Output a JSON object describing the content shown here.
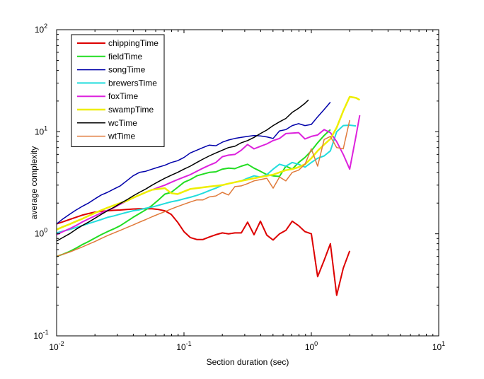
{
  "chart_data": {
    "type": "line",
    "xscale": "log",
    "yscale": "log",
    "xlim": [
      0.01,
      10
    ],
    "ylim": [
      0.1,
      100
    ],
    "xlabel": "Section duration (sec)",
    "ylabel": "average complexity",
    "grid": false,
    "legend_position": "top-left",
    "xticks": [
      {
        "value": 0.01,
        "base": "10",
        "exp": "-2"
      },
      {
        "value": 0.1,
        "base": "10",
        "exp": "-1"
      },
      {
        "value": 1,
        "base": "10",
        "exp": "0"
      },
      {
        "value": 10,
        "base": "10",
        "exp": "1"
      }
    ],
    "yticks": [
      {
        "value": 0.1,
        "base": "10",
        "exp": "-1"
      },
      {
        "value": 1,
        "base": "10",
        "exp": "0"
      },
      {
        "value": 10,
        "base": "10",
        "exp": "1"
      },
      {
        "value": 100,
        "base": "10",
        "exp": "2"
      }
    ],
    "series": [
      {
        "name": "chippingTime",
        "color": "#dd0000",
        "width": 2,
        "x": [
          0.01,
          0.0112,
          0.0126,
          0.0141,
          0.0158,
          0.0178,
          0.02,
          0.0224,
          0.0251,
          0.0282,
          0.0316,
          0.0355,
          0.0398,
          0.0447,
          0.0501,
          0.0562,
          0.0631,
          0.0708,
          0.0794,
          0.0891,
          0.1,
          0.112,
          0.126,
          0.141,
          0.158,
          0.178,
          0.2,
          0.224,
          0.251,
          0.282,
          0.316,
          0.355,
          0.398,
          0.447,
          0.501,
          0.562,
          0.631,
          0.708,
          0.794,
          0.891,
          1.0,
          1.12,
          1.26,
          1.41,
          1.58,
          1.78,
          2.0
        ],
        "y": [
          1.25,
          1.31,
          1.38,
          1.45,
          1.52,
          1.58,
          1.63,
          1.66,
          1.68,
          1.7,
          1.71,
          1.73,
          1.75,
          1.76,
          1.76,
          1.76,
          1.73,
          1.68,
          1.55,
          1.3,
          1.05,
          0.92,
          0.88,
          0.88,
          0.93,
          0.98,
          1.02,
          1.0,
          1.02,
          1.02,
          1.3,
          0.98,
          1.33,
          0.97,
          0.87,
          1.0,
          1.08,
          1.33,
          1.2,
          1.05,
          1.0,
          0.38,
          0.55,
          0.8,
          0.25,
          0.46,
          0.68
        ]
      },
      {
        "name": "fieldTime",
        "color": "#22dd22",
        "width": 2,
        "x": [
          0.01,
          0.0112,
          0.0126,
          0.0141,
          0.0158,
          0.0178,
          0.02,
          0.0224,
          0.0251,
          0.0282,
          0.0316,
          0.0355,
          0.0398,
          0.0447,
          0.0501,
          0.0562,
          0.0631,
          0.0708,
          0.0794,
          0.0891,
          0.1,
          0.112,
          0.126,
          0.141,
          0.158,
          0.178,
          0.2,
          0.224,
          0.251,
          0.282,
          0.316,
          0.355,
          0.398,
          0.447,
          0.501,
          0.562,
          0.631,
          0.708,
          0.794,
          0.891,
          1.0,
          1.12,
          1.26,
          1.41
        ],
        "y": [
          0.6,
          0.63,
          0.67,
          0.72,
          0.78,
          0.84,
          0.91,
          0.98,
          1.05,
          1.12,
          1.2,
          1.32,
          1.45,
          1.58,
          1.72,
          1.9,
          2.15,
          2.45,
          2.55,
          2.85,
          3.2,
          3.4,
          3.7,
          3.85,
          4.0,
          4.05,
          4.3,
          4.4,
          4.35,
          4.6,
          4.8,
          4.4,
          4.1,
          3.8,
          3.7,
          3.65,
          4.6,
          4.3,
          5.0,
          5.6,
          6.5,
          7.8,
          9.2,
          10.5
        ]
      },
      {
        "name": "songTime",
        "color": "#0000aa",
        "width": 1.5,
        "x": [
          0.01,
          0.0112,
          0.0126,
          0.0141,
          0.0158,
          0.0178,
          0.02,
          0.0224,
          0.0251,
          0.0282,
          0.0316,
          0.0355,
          0.0398,
          0.0447,
          0.0501,
          0.0562,
          0.0631,
          0.0708,
          0.0794,
          0.0891,
          0.1,
          0.112,
          0.126,
          0.141,
          0.158,
          0.178,
          0.2,
          0.224,
          0.251,
          0.282,
          0.316,
          0.355,
          0.398,
          0.447,
          0.501,
          0.562,
          0.631,
          0.708,
          0.794,
          0.891,
          1.0,
          1.12,
          1.26,
          1.41
        ],
        "y": [
          1.25,
          1.4,
          1.55,
          1.7,
          1.85,
          2.0,
          2.2,
          2.4,
          2.55,
          2.75,
          2.95,
          3.3,
          3.7,
          4.0,
          4.1,
          4.3,
          4.5,
          4.7,
          5.0,
          5.2,
          5.6,
          6.2,
          6.6,
          7.0,
          7.4,
          7.3,
          7.9,
          8.3,
          8.6,
          8.8,
          9.0,
          9.2,
          9.1,
          8.9,
          8.6,
          10.2,
          10.5,
          11.5,
          12.0,
          11.5,
          11.8,
          14.0,
          16.5,
          19.5
        ]
      },
      {
        "name": "brewersTime",
        "color": "#22dddd",
        "width": 2,
        "x": [
          0.01,
          0.0112,
          0.0126,
          0.0141,
          0.0158,
          0.0178,
          0.02,
          0.0224,
          0.0251,
          0.0282,
          0.0316,
          0.0355,
          0.0398,
          0.0447,
          0.0501,
          0.0562,
          0.0631,
          0.0708,
          0.0794,
          0.0891,
          0.1,
          0.112,
          0.126,
          0.141,
          0.158,
          0.178,
          0.2,
          0.224,
          0.251,
          0.282,
          0.316,
          0.355,
          0.398,
          0.447,
          0.501,
          0.562,
          0.631,
          0.708,
          0.794,
          0.891,
          1.0,
          1.12,
          1.26,
          1.41,
          1.58,
          1.78,
          2.0,
          2.24
        ],
        "y": [
          1.02,
          1.06,
          1.1,
          1.15,
          1.2,
          1.26,
          1.32,
          1.38,
          1.45,
          1.5,
          1.56,
          1.62,
          1.68,
          1.72,
          1.78,
          1.83,
          1.9,
          1.98,
          2.06,
          2.12,
          2.2,
          2.28,
          2.38,
          2.5,
          2.65,
          2.8,
          3.0,
          3.1,
          3.2,
          3.3,
          3.5,
          3.7,
          3.6,
          3.8,
          4.3,
          4.8,
          4.6,
          5.0,
          4.8,
          4.5,
          5.0,
          5.5,
          5.8,
          6.5,
          10.0,
          11.5,
          11.6,
          11.4
        ]
      },
      {
        "name": "foxTime",
        "color": "#dd22dd",
        "width": 2,
        "x": [
          0.01,
          0.0112,
          0.0126,
          0.0141,
          0.0158,
          0.0178,
          0.02,
          0.0224,
          0.0251,
          0.0282,
          0.0316,
          0.0355,
          0.0398,
          0.0447,
          0.0501,
          0.0562,
          0.0631,
          0.0708,
          0.0794,
          0.0891,
          0.1,
          0.112,
          0.126,
          0.141,
          0.158,
          0.178,
          0.2,
          0.224,
          0.251,
          0.282,
          0.316,
          0.355,
          0.398,
          0.447,
          0.501,
          0.562,
          0.631,
          0.708,
          0.794,
          0.891,
          1.0,
          1.12,
          1.26,
          1.41,
          1.58,
          1.78,
          2.0,
          2.24,
          2.4
        ],
        "y": [
          0.98,
          1.05,
          1.12,
          1.2,
          1.3,
          1.4,
          1.5,
          1.6,
          1.7,
          1.8,
          1.95,
          2.1,
          2.25,
          2.4,
          2.55,
          2.7,
          2.85,
          3.0,
          3.2,
          3.4,
          3.6,
          3.8,
          4.1,
          4.4,
          4.7,
          5.0,
          5.7,
          5.9,
          6.0,
          6.6,
          7.5,
          6.8,
          7.2,
          7.6,
          8.2,
          8.6,
          9.6,
          9.7,
          9.8,
          8.5,
          9.0,
          9.3,
          10.5,
          9.8,
          8.0,
          6.0,
          4.3,
          9.0,
          14.5
        ]
      },
      {
        "name": "swampTime",
        "color": "#eeee00",
        "width": 2.5,
        "x": [
          0.01,
          0.0112,
          0.0126,
          0.0141,
          0.0158,
          0.0178,
          0.02,
          0.0224,
          0.0251,
          0.0282,
          0.0316,
          0.0355,
          0.0398,
          0.0447,
          0.0501,
          0.0562,
          0.0631,
          0.0708,
          0.0794,
          0.0891,
          0.1,
          0.112,
          0.126,
          0.141,
          0.158,
          0.178,
          0.2,
          0.224,
          0.251,
          0.282,
          0.316,
          0.355,
          0.398,
          0.447,
          0.501,
          0.562,
          0.631,
          0.708,
          0.794,
          0.891,
          1.0,
          1.12,
          1.26,
          1.41,
          1.58,
          1.78,
          2.0,
          2.24,
          2.4
        ],
        "y": [
          1.1,
          1.17,
          1.24,
          1.32,
          1.4,
          1.5,
          1.6,
          1.7,
          1.8,
          1.9,
          2.0,
          2.1,
          2.25,
          2.4,
          2.55,
          2.7,
          2.75,
          2.8,
          2.5,
          2.45,
          2.6,
          2.75,
          2.8,
          2.85,
          2.9,
          2.95,
          3.0,
          3.1,
          3.2,
          3.3,
          3.4,
          3.5,
          3.6,
          3.7,
          3.8,
          4.0,
          4.2,
          4.3,
          4.5,
          4.8,
          5.5,
          6.5,
          7.5,
          8.5,
          11.0,
          16.0,
          22.0,
          21.5,
          20.5
        ]
      },
      {
        "name": "wcTime",
        "color": "#000000",
        "width": 1.5,
        "x": [
          0.01,
          0.0112,
          0.0126,
          0.0141,
          0.0158,
          0.0178,
          0.02,
          0.0224,
          0.0251,
          0.0282,
          0.0316,
          0.0355,
          0.0398,
          0.0447,
          0.0501,
          0.0562,
          0.0631,
          0.0708,
          0.0794,
          0.0891,
          0.1,
          0.112,
          0.126,
          0.141,
          0.158,
          0.178,
          0.2,
          0.224,
          0.251,
          0.282,
          0.316,
          0.355,
          0.398,
          0.447,
          0.501,
          0.562,
          0.631,
          0.708,
          0.794,
          0.891,
          0.95
        ],
        "y": [
          0.85,
          0.92,
          1.0,
          1.1,
          1.2,
          1.3,
          1.42,
          1.55,
          1.68,
          1.82,
          1.98,
          2.15,
          2.35,
          2.55,
          2.75,
          3.0,
          3.25,
          3.5,
          3.75,
          4.0,
          4.3,
          4.6,
          5.0,
          5.4,
          5.8,
          6.2,
          6.6,
          7.0,
          7.2,
          7.8,
          8.2,
          8.8,
          9.6,
          10.4,
          11.5,
          12.5,
          13.5,
          15.5,
          17.0,
          19.0,
          20.5
        ]
      },
      {
        "name": "wtTime",
        "color": "#e07a3a",
        "width": 1.5,
        "x": [
          0.01,
          0.0112,
          0.0126,
          0.0141,
          0.0158,
          0.0178,
          0.02,
          0.0224,
          0.0251,
          0.0282,
          0.0316,
          0.0355,
          0.0398,
          0.0447,
          0.0501,
          0.0562,
          0.0631,
          0.0708,
          0.0794,
          0.0891,
          0.1,
          0.112,
          0.126,
          0.141,
          0.158,
          0.178,
          0.2,
          0.224,
          0.251,
          0.282,
          0.316,
          0.355,
          0.398,
          0.447,
          0.501,
          0.562,
          0.631,
          0.708,
          0.794,
          0.891,
          1.0,
          1.12,
          1.26,
          1.41,
          1.58,
          1.78,
          2.0
        ],
        "y": [
          0.6,
          0.63,
          0.66,
          0.7,
          0.74,
          0.79,
          0.84,
          0.9,
          0.96,
          1.02,
          1.08,
          1.15,
          1.22,
          1.3,
          1.38,
          1.47,
          1.56,
          1.65,
          1.75,
          1.85,
          1.95,
          2.05,
          2.15,
          2.15,
          2.3,
          2.35,
          2.55,
          2.4,
          2.9,
          2.95,
          3.1,
          3.3,
          3.4,
          3.5,
          2.8,
          3.6,
          3.3,
          4.0,
          4.2,
          4.8,
          6.8,
          4.6,
          8.4,
          9.0,
          7.0,
          6.8,
          13.0
        ]
      }
    ]
  }
}
